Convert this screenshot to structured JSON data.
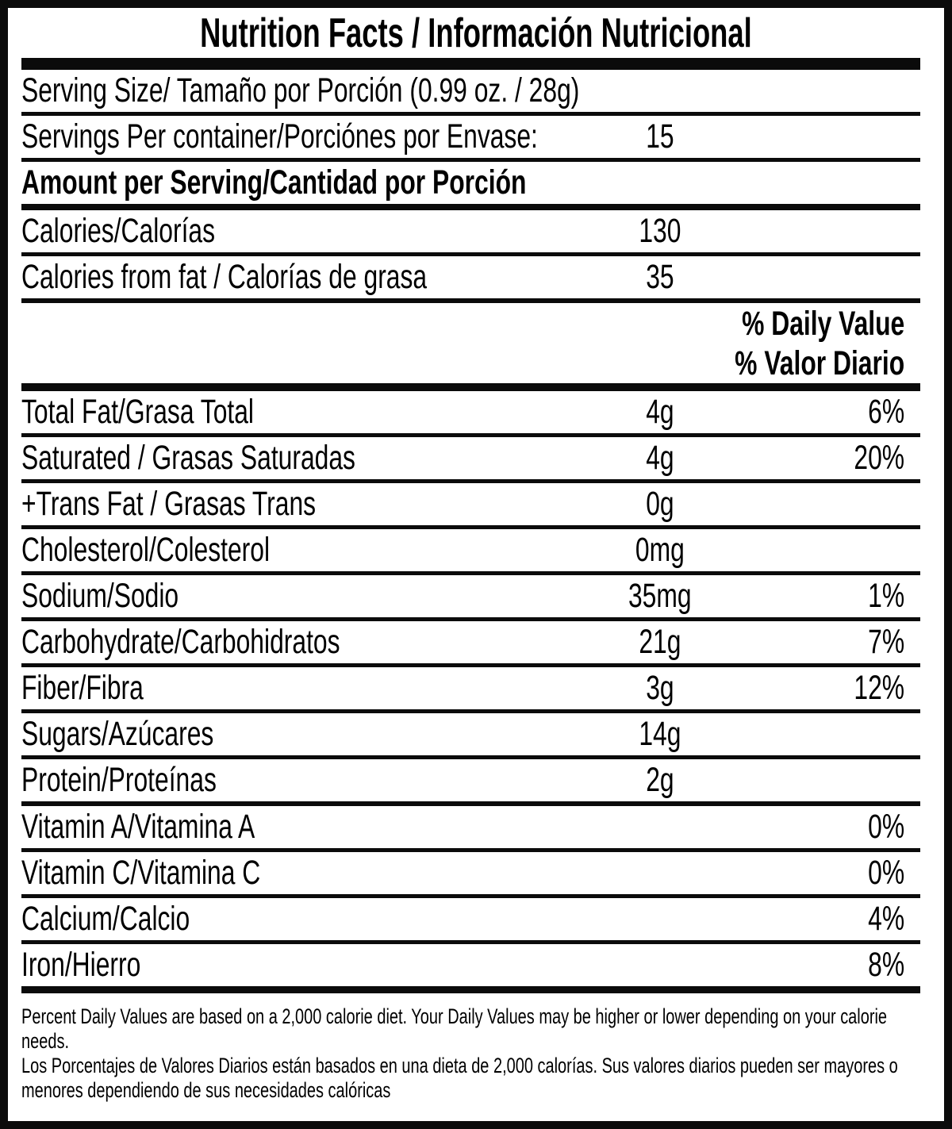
{
  "label": {
    "title": "Nutrition Facts / Información Nutricional",
    "serving_size": {
      "label": "Serving Size/ Tamaño por Porción  (0.99 oz. / 28g)"
    },
    "servings_per_container": {
      "label": "Servings Per container/Porciónes por Envase:",
      "value": "15"
    },
    "amount_per_serving_heading": "Amount per Serving/Cantidad por Porción",
    "calories": {
      "label": "Calories/Calorías",
      "value": "130"
    },
    "calories_from_fat": {
      "label": "Calories from fat / Calorías de grasa",
      "value": "35"
    },
    "daily_value_heading_en": "% Daily Value",
    "daily_value_heading_es": "% Valor Diario",
    "nutrients": [
      {
        "label": "Total Fat/Grasa Total",
        "amount": "4g",
        "dv": "6%"
      },
      {
        "label": "Saturated / Grasas Saturadas",
        "amount": "4g",
        "dv": "20%"
      },
      {
        "label": "+Trans Fat / Grasas Trans",
        "amount": "0g",
        "dv": ""
      },
      {
        "label": "Cholesterol/Colesterol",
        "amount": "0mg",
        "dv": ""
      },
      {
        "label": "Sodium/Sodio",
        "amount": "35mg",
        "dv": "1%"
      },
      {
        "label": "Carbohydrate/Carbohidratos",
        "amount": "21g",
        "dv": "7%"
      },
      {
        "label": "Fiber/Fibra",
        "amount": "3g",
        "dv": "12%"
      },
      {
        "label": "Sugars/Azúcares",
        "amount": "14g",
        "dv": ""
      },
      {
        "label": "Protein/Proteínas",
        "amount": "2g",
        "dv": ""
      },
      {
        "label": "Vitamin A/Vitamina A",
        "amount": "",
        "dv": "0%"
      },
      {
        "label": "Vitamin C/Vitamina C",
        "amount": "",
        "dv": "0%"
      },
      {
        "label": "Calcium/Calcio",
        "amount": "",
        "dv": "4%"
      },
      {
        "label": "Iron/Hierro",
        "amount": "",
        "dv": "8%"
      }
    ],
    "footnote_en": "Percent Daily Values are based on a 2,000 calorie diet. Your Daily Values may be higher or lower depending on your calorie needs.",
    "footnote_es": "Los Porcentajes de Valores Diarios están basados en una dieta de 2,000 calorías. Sus valores diarios pueden ser mayores o menores dependiendo de sus necesidades calóricas",
    "colors": {
      "ink": "#0b0b0b",
      "background": "#ffffff"
    }
  }
}
